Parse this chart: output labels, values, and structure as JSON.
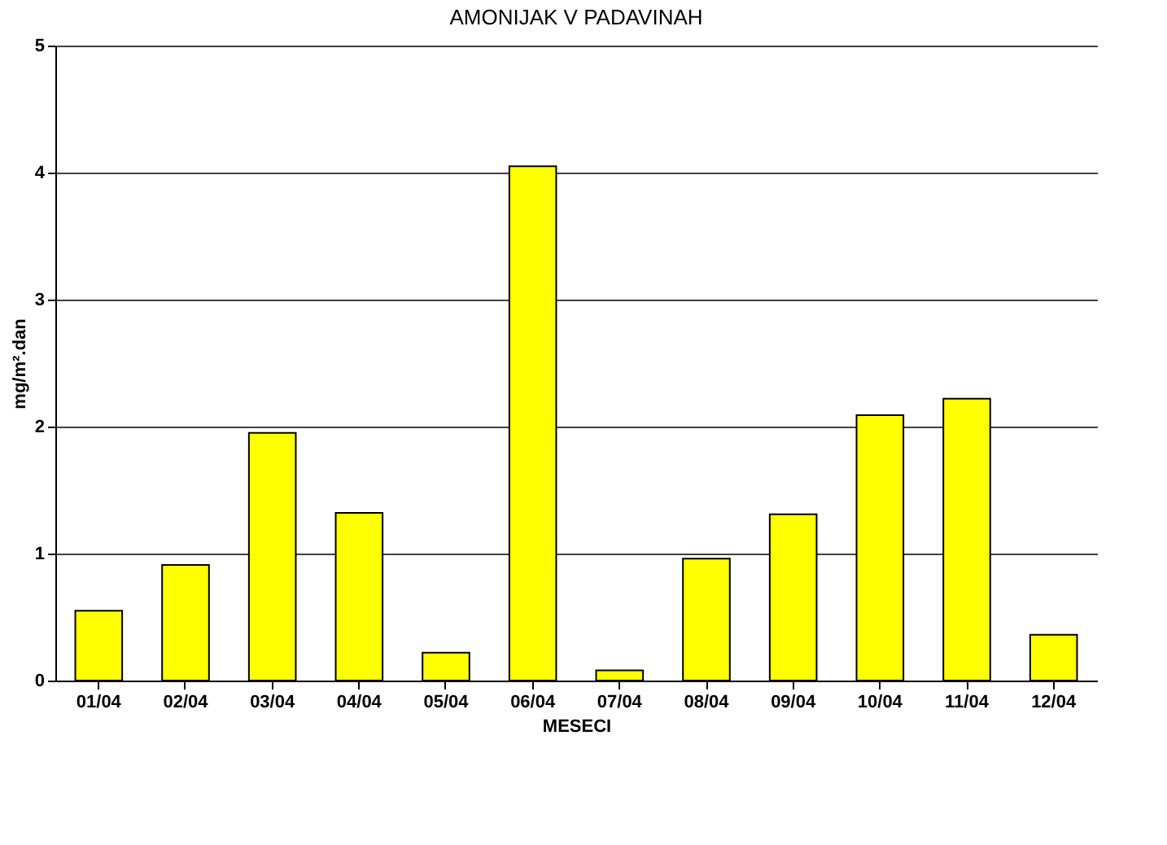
{
  "chart_data": {
    "type": "bar",
    "title": "AMONIJAK V PADAVINAH",
    "xlabel": "MESECI",
    "ylabel": "mg/m².dan",
    "categories": [
      "01/04",
      "02/04",
      "03/04",
      "04/04",
      "05/04",
      "06/04",
      "07/04",
      "08/04",
      "09/04",
      "10/04",
      "11/04",
      "12/04"
    ],
    "values": [
      0.55,
      0.91,
      1.95,
      1.32,
      0.22,
      4.05,
      0.08,
      0.96,
      1.31,
      2.09,
      2.22,
      0.36
    ],
    "color": "#ffff00",
    "ylim": [
      0,
      5
    ],
    "yticks": [
      0,
      1,
      2,
      3,
      4,
      5
    ],
    "grid": "y"
  }
}
